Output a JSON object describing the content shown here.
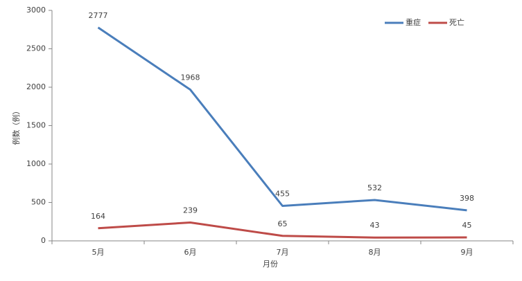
{
  "chart_data": {
    "type": "line",
    "x_label": "月份",
    "y_label": "例数（例）",
    "categories": [
      "5月",
      "6月",
      "7月",
      "8月",
      "9月"
    ],
    "series": [
      {
        "name": "重症",
        "color": "#4a7ebb",
        "values": [
          2777,
          1968,
          455,
          532,
          398
        ]
      },
      {
        "name": "死亡",
        "color": "#be4b48",
        "values": [
          164,
          239,
          65,
          43,
          45
        ]
      }
    ],
    "ylim": [
      0,
      3000
    ],
    "yticks": [
      0,
      500,
      1000,
      1500,
      2000,
      2500,
      3000
    ],
    "grid": false,
    "legend": "top-right"
  }
}
